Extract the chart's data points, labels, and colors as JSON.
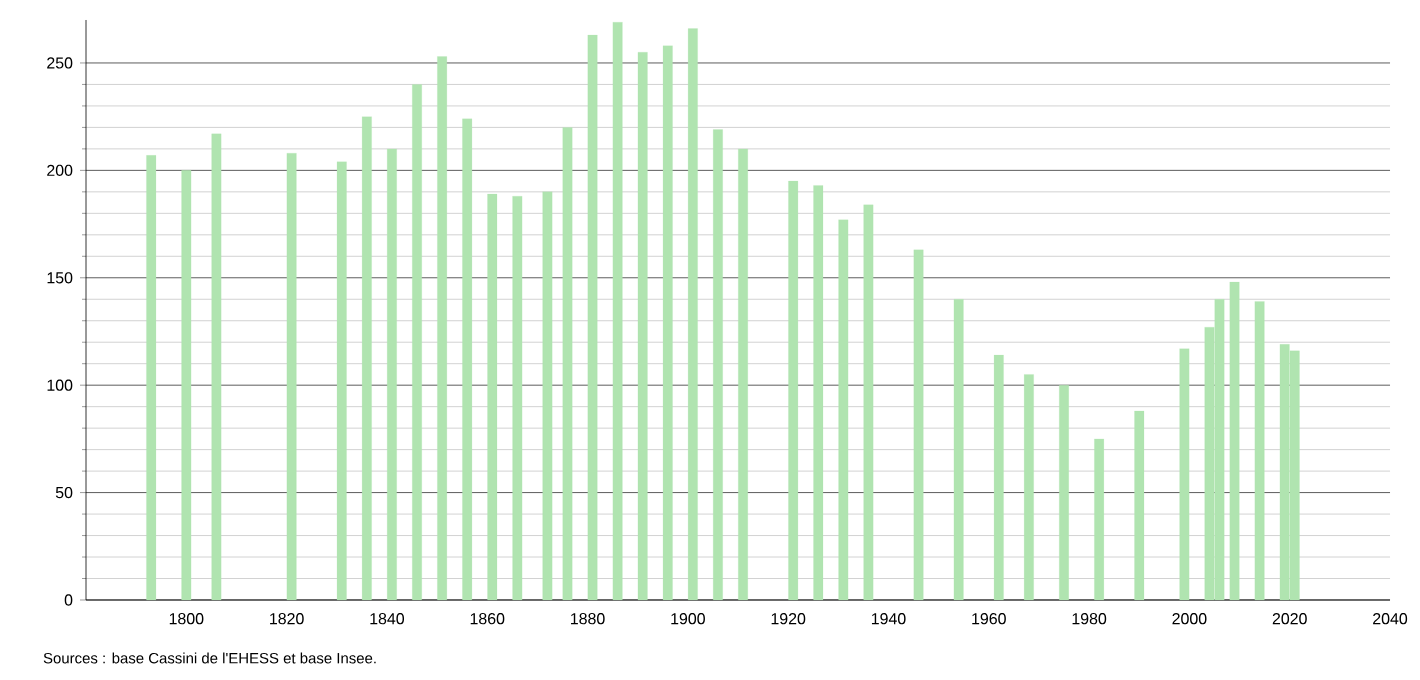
{
  "chart_data": {
    "type": "bar",
    "color": "#b0e4b0",
    "x": [
      1793,
      1800,
      1806,
      1821,
      1831,
      1836,
      1841,
      1846,
      1851,
      1856,
      1861,
      1866,
      1872,
      1876,
      1881,
      1886,
      1891,
      1896,
      1901,
      1906,
      1911,
      1921,
      1926,
      1931,
      1936,
      1946,
      1954,
      1962,
      1968,
      1975,
      1982,
      1990,
      1999,
      2004,
      2006,
      2009,
      2014,
      2019,
      2021
    ],
    "values": [
      207,
      200,
      217,
      208,
      204,
      225,
      210,
      240,
      253,
      224,
      189,
      188,
      190,
      220,
      263,
      269,
      255,
      258,
      266,
      219,
      210,
      195,
      193,
      177,
      184,
      163,
      140,
      114,
      105,
      100,
      75,
      88,
      117,
      127,
      140,
      148,
      139,
      119,
      116
    ],
    "xlim": [
      1780,
      2040
    ],
    "xticks": [
      1800,
      1820,
      1840,
      1860,
      1880,
      1900,
      1920,
      1940,
      1960,
      1980,
      2000,
      2020,
      2040
    ],
    "ylim": [
      0,
      270
    ],
    "yticks": [
      0,
      50,
      100,
      150,
      200,
      250
    ],
    "grid": "y",
    "annotations": [
      "Sources : base Cassini de l'EHESS et base Insee."
    ]
  }
}
